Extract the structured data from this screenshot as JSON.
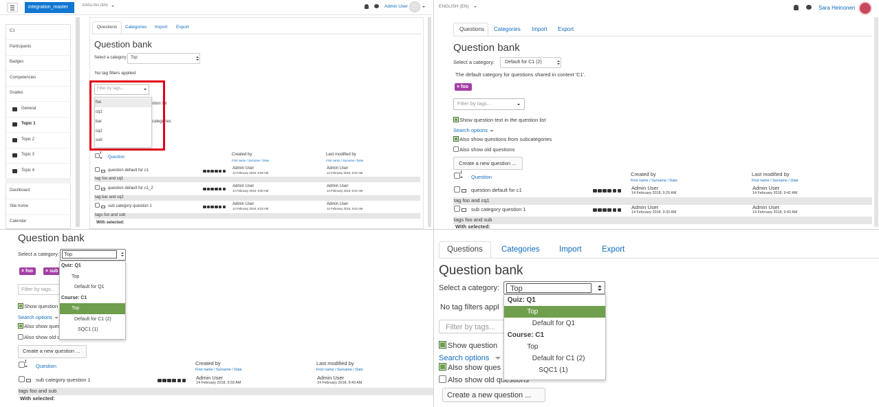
{
  "tl": {
    "brand": "integration_master",
    "language": "ENGLISH (EN)",
    "user": "Admin User",
    "nav": [
      "C1",
      "Participants",
      "Badges",
      "Competencies",
      "Grades",
      "General",
      "Topic 1",
      "Topic 2",
      "Topic 3",
      "Topic 4",
      "Dashboard",
      "Site home",
      "Calendar"
    ],
    "tabs": [
      "Questions",
      "Categories",
      "Import",
      "Export"
    ],
    "heading": "Question bank",
    "category_label": "Select a category:",
    "category": "Top",
    "tag_note": "No tag filters applied",
    "filter": "Filter by tags...",
    "tag_options": [
      "foo",
      "cq1",
      "bar",
      "cq2",
      "sub"
    ],
    "hidden_text": [
      "stion list",
      "categories"
    ],
    "columns": {
      "question": "Question",
      "created": "Created by",
      "modified": "Last modified by",
      "sort": "First name / Surname / Date"
    },
    "rows": [
      {
        "name": "question default for c1",
        "created_by": "Admin User",
        "created": "14 February 2018, 9:29 AM",
        "modified_by": "Admin User",
        "modified": "14 February 2018, 9:42 AM",
        "tags": "tag foo and cq1"
      },
      {
        "name": "question default for c1_2",
        "created_by": "Admin User",
        "created": "14 February 2018, 9:30 AM",
        "modified_by": "Admin User",
        "modified": "14 February 2018, 9:42 AM",
        "tags": "tag bar and cq2"
      },
      {
        "name": "sub category question 1",
        "created_by": "Admin User",
        "created": "14 February 2018, 9:33 AM",
        "modified_by": "Admin User",
        "modified": "14 February 2018, 9:43 AM",
        "tags": "tags foo and sub"
      }
    ],
    "with_selected": "With selected:"
  },
  "tr": {
    "language": "ENGLISH (EN)",
    "user": "Sara Heinonen",
    "tabs": [
      "Questions",
      "Categories",
      "Import",
      "Export"
    ],
    "heading": "Question bank",
    "category_label": "Select a category:",
    "category": "Default for C1 (2)",
    "description": "The default category for questions shared in context 'C1'.",
    "chips": [
      "× foo"
    ],
    "filter": "Filter by tags...",
    "show_text": "Show question text in the question list",
    "search_options": "Search options",
    "subcategories": "Also show questions from subcategories",
    "old": "Also show old questions",
    "create": "Create a new question ...",
    "columns": {
      "question": "Question",
      "created": "Created by",
      "modified": "Last modified by",
      "sort": "First name / Surname / Date"
    },
    "rows": [
      {
        "name": "question default for c1",
        "created_by": "Admin User",
        "created": "14 February 2018, 9:29 AM",
        "modified_by": "Admin User",
        "modified": "14 February 2018, 9:42 AM",
        "tags": "tag foo and cq1"
      },
      {
        "name": "sub category question 1",
        "created_by": "Admin User",
        "created": "14 February 2018, 9:33 AM",
        "modified_by": "Admin User",
        "modified": "14 February 2018, 9:43 AM",
        "tags": "tags foo and sub"
      }
    ],
    "with_selected": "With selected:"
  },
  "bl": {
    "heading": "Question bank",
    "category_label": "Select a category:",
    "category": "Top",
    "chips": [
      "× foo",
      "× sub"
    ],
    "filter": "Filter by tags...",
    "show_text": "Show question",
    "search_options": "Search options",
    "subcategories": "Also show ques",
    "old": "Also show old questions",
    "create": "Create a new question ...",
    "dropdown": [
      "Quiz: Q1",
      "Top",
      "Default for Q1",
      "Course: C1",
      "Top",
      "Default for C1 (2)",
      "SQC1 (1)"
    ],
    "selected": 4,
    "columns": {
      "question": "Question",
      "created": "Created by",
      "modified": "Last modified by",
      "sort": "First name / Surname / Date"
    },
    "rows": [
      {
        "name": "sub category question 1",
        "created_by": "Admin User",
        "created": "14 February 2018, 9:33 AM",
        "modified_by": "Admin User",
        "modified": "14 February 2018, 9:43 AM",
        "tags": "tags foo and sub"
      }
    ],
    "with_selected": "With selected:"
  },
  "br": {
    "tabs": [
      "Questions",
      "Categories",
      "Import",
      "Export"
    ],
    "heading": "Question bank",
    "category_label": "Select a category:",
    "category": "Top",
    "tag_note": "No tag filters appl",
    "filter": "Filter by tags...",
    "show_text": "Show question",
    "search_options": "Search options",
    "subcategories": "Also show ques",
    "old": "Also show old questions",
    "create": "Create a new question ...",
    "dropdown": [
      "Quiz: Q1",
      "Top",
      "Default for Q1",
      "Course: C1",
      "Top",
      "Default for C1 (2)",
      "SQC1 (1)"
    ],
    "selected": 1
  }
}
